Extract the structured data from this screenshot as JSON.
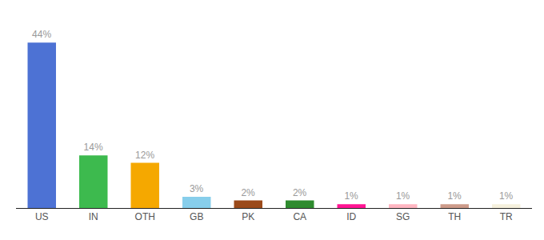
{
  "chart_data": {
    "type": "bar",
    "categories": [
      "US",
      "IN",
      "OTH",
      "GB",
      "PK",
      "CA",
      "ID",
      "SG",
      "TH",
      "TR"
    ],
    "values": [
      44,
      14,
      12,
      3,
      2,
      2,
      1,
      1,
      1,
      1
    ],
    "value_labels": [
      "44%",
      "14%",
      "12%",
      "3%",
      "2%",
      "2%",
      "1%",
      "1%",
      "1%",
      "1%"
    ],
    "colors": [
      "#4d72d4",
      "#3dba4e",
      "#f5a800",
      "#87ceeb",
      "#9b4a1a",
      "#2e8b2e",
      "#ff1493",
      "#ffb6c1",
      "#cd9b8a",
      "#f5f0dc"
    ],
    "ylim": [
      0,
      50
    ],
    "data_labels": true,
    "tick_labels": "x",
    "grid": false
  }
}
